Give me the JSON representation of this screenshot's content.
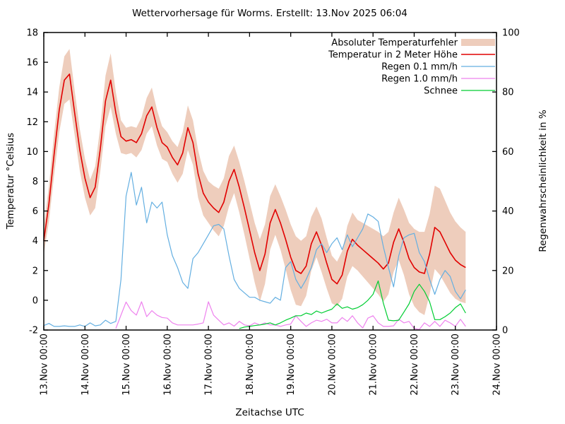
{
  "title": "Wettervorhersage für Worms. Erstellt: 13.Nov 2025 06:04",
  "axes": {
    "x_label": "Zeitachse UTC",
    "y_left_label": "Temperatur °Celsius",
    "y_right_label": "Regenwahrscheinlichkeit in %",
    "x_ticks": [
      "13.Nov 00:00",
      "14.Nov 00:00",
      "15.Nov 00:00",
      "16.Nov 00:00",
      "17.Nov 00:00",
      "18.Nov 00:00",
      "19.Nov 00:00",
      "20.Nov 00:00",
      "21.Nov 00:00",
      "22.Nov 00:00",
      "23.Nov 00:00",
      "24.Nov 00:00"
    ],
    "y_left_ticks": [
      -2,
      0,
      2,
      4,
      6,
      8,
      10,
      12,
      14,
      16,
      18
    ],
    "y_right_ticks": [
      0,
      20,
      40,
      60,
      80,
      100
    ]
  },
  "chart_data": {
    "type": "line",
    "title": "Wettervorhersage für Worms. Erstellt: 13.Nov 2025 06:04",
    "xlabel": "Zeitachse UTC",
    "ylabel_left": "Temperatur °Celsius",
    "ylabel_right": "Regenwahrscheinlichkeit in %",
    "x_unit": "hours since 13.Nov 00:00 UTC",
    "x_range_hours": [
      0,
      264
    ],
    "x_day_tick_hours": [
      0,
      24,
      48,
      72,
      96,
      120,
      144,
      168,
      192,
      216,
      240,
      264
    ],
    "y_left_range": [
      -2,
      18
    ],
    "y_right_range": [
      0,
      100
    ],
    "grid": false,
    "legend_position": "top-right-inside",
    "x_hours": [
      0,
      3,
      6,
      9,
      12,
      15,
      18,
      21,
      24,
      27,
      30,
      33,
      36,
      39,
      42,
      45,
      48,
      51,
      54,
      57,
      60,
      63,
      66,
      69,
      72,
      75,
      78,
      81,
      84,
      87,
      90,
      93,
      96,
      99,
      102,
      105,
      108,
      111,
      114,
      117,
      120,
      123,
      126,
      129,
      132,
      135,
      138,
      141,
      144,
      147,
      150,
      153,
      156,
      159,
      162,
      165,
      168,
      171,
      174,
      177,
      180,
      183,
      186,
      189,
      192,
      195,
      198,
      201,
      204,
      207,
      210,
      213,
      216,
      219,
      222,
      225,
      228,
      231,
      234,
      237,
      240,
      243,
      246
    ],
    "series": [
      {
        "name": "Absoluter Temperaturfehler",
        "kind": "band",
        "axis": "left",
        "color": "#eecdbc",
        "half_width": [
          0.9,
          1.2,
          1.4,
          1.5,
          1.6,
          1.7,
          1.5,
          1.4,
          1.3,
          1.2,
          1.4,
          1.5,
          1.7,
          1.8,
          1.4,
          1.1,
          0.9,
          0.9,
          1.0,
          1.1,
          1.2,
          1.3,
          1.2,
          1.1,
          1.0,
          1.1,
          1.2,
          1.4,
          1.5,
          1.5,
          1.6,
          1.5,
          1.4,
          1.5,
          1.6,
          1.6,
          1.7,
          1.6,
          1.7,
          1.8,
          1.9,
          2.0,
          2.1,
          2.0,
          1.8,
          1.7,
          1.8,
          2.0,
          2.2,
          2.3,
          2.2,
          2.0,
          1.8,
          1.7,
          1.8,
          1.7,
          1.6,
          1.5,
          1.6,
          1.7,
          1.8,
          1.7,
          1.8,
          1.9,
          2.0,
          2.1,
          2.2,
          2.1,
          2.0,
          2.1,
          2.2,
          2.4,
          2.6,
          2.7,
          2.8,
          2.7,
          2.8,
          2.9,
          2.8,
          2.7,
          2.6,
          2.5,
          2.4
        ]
      },
      {
        "name": "Temperatur in 2 Meter Höhe",
        "kind": "line",
        "axis": "left",
        "color": "#e10000",
        "values": [
          4.0,
          6.5,
          9.8,
          12.8,
          14.8,
          15.2,
          12.6,
          10.1,
          8.2,
          6.9,
          7.6,
          10.2,
          13.4,
          14.8,
          12.6,
          11.0,
          10.7,
          10.8,
          10.6,
          11.2,
          12.4,
          13.0,
          11.6,
          10.6,
          10.3,
          9.6,
          9.1,
          9.9,
          11.6,
          10.6,
          8.5,
          7.2,
          6.6,
          6.2,
          5.9,
          6.6,
          8.0,
          8.8,
          7.6,
          6.2,
          4.7,
          3.2,
          2.0,
          3.1,
          5.2,
          6.1,
          5.2,
          4.1,
          2.9,
          2.0,
          1.8,
          2.3,
          3.8,
          4.6,
          3.7,
          2.5,
          1.4,
          1.1,
          1.7,
          3.3,
          4.1,
          3.7,
          3.4,
          3.1,
          2.8,
          2.5,
          2.1,
          2.5,
          3.9,
          4.8,
          3.9,
          2.8,
          2.2,
          1.9,
          1.8,
          3.1,
          4.9,
          4.6,
          3.9,
          3.2,
          2.7,
          2.4,
          2.2
        ]
      },
      {
        "name": "Regen 0.1 mm/h",
        "kind": "line",
        "axis": "right",
        "color": "#64afe1",
        "values": [
          1.5,
          2.2,
          1.2,
          1.2,
          1.4,
          1.2,
          1.2,
          1.7,
          1.2,
          2.4,
          1.4,
          1.7,
          3.3,
          2.2,
          2.9,
          17,
          45,
          53,
          42,
          48,
          36,
          43,
          41,
          43,
          32,
          25,
          21,
          16,
          14,
          24,
          26,
          29,
          32,
          35,
          35.5,
          34,
          25,
          17,
          14,
          12.5,
          11,
          11,
          10,
          9.5,
          9,
          11,
          10,
          21,
          23,
          17,
          14,
          17,
          21,
          27,
          29,
          26,
          29,
          31,
          27,
          32,
          28,
          31,
          34,
          39,
          38,
          36.5,
          28,
          21,
          14.5,
          25,
          31,
          32,
          32.5,
          26,
          23,
          17,
          12,
          17,
          20,
          18,
          13,
          10.5,
          13.5
        ]
      },
      {
        "name": "Regen 1.0 mm/h",
        "kind": "line",
        "axis": "right",
        "color": "#ee82ee",
        "values": [
          null,
          null,
          null,
          null,
          null,
          null,
          null,
          null,
          null,
          null,
          null,
          null,
          null,
          null,
          0.5,
          5,
          9.4,
          6.5,
          5,
          9.5,
          4.5,
          6.5,
          5,
          4.2,
          4,
          2.4,
          1.7,
          1.7,
          1.7,
          1.7,
          2,
          2.4,
          9.5,
          5,
          3.3,
          1.7,
          2.4,
          1.3,
          2.9,
          1.7,
          1.4,
          2.4,
          1.7,
          2.4,
          1.7,
          1.7,
          1.2,
          1.7,
          2,
          4.8,
          2.9,
          1.2,
          2.4,
          3.3,
          2.9,
          3.6,
          2.4,
          2.4,
          4.2,
          2.9,
          4.8,
          2.4,
          0.7,
          4,
          4.8,
          2.4,
          1.2,
          1.2,
          1.4,
          3.6,
          2.4,
          2.9,
          0.5,
          0.2,
          2.4,
          1.2,
          2.9,
          1.2,
          3.3,
          2.4,
          1.2,
          3.6,
          1.2
        ]
      },
      {
        "name": "Schnee",
        "kind": "line",
        "axis": "right",
        "color": "#00cd32",
        "values": [
          null,
          null,
          null,
          null,
          null,
          null,
          null,
          null,
          null,
          null,
          null,
          null,
          null,
          null,
          null,
          null,
          null,
          null,
          null,
          null,
          null,
          null,
          null,
          null,
          null,
          null,
          null,
          null,
          null,
          null,
          null,
          null,
          null,
          null,
          null,
          null,
          null,
          null,
          0.5,
          1,
          1.2,
          1.5,
          1.7,
          2,
          2.4,
          1.7,
          2.4,
          3.3,
          4,
          4.8,
          4.8,
          5.7,
          5.2,
          6.4,
          5.7,
          6.4,
          7,
          8.8,
          7.3,
          7.8,
          7,
          7.5,
          8.5,
          10,
          12,
          16.5,
          9,
          3.3,
          3.1,
          3.3,
          6,
          8.8,
          13,
          15.4,
          13,
          9.5,
          3.5,
          3.5,
          4.5,
          5.7,
          7.5,
          8.8,
          5.7
        ]
      }
    ]
  }
}
